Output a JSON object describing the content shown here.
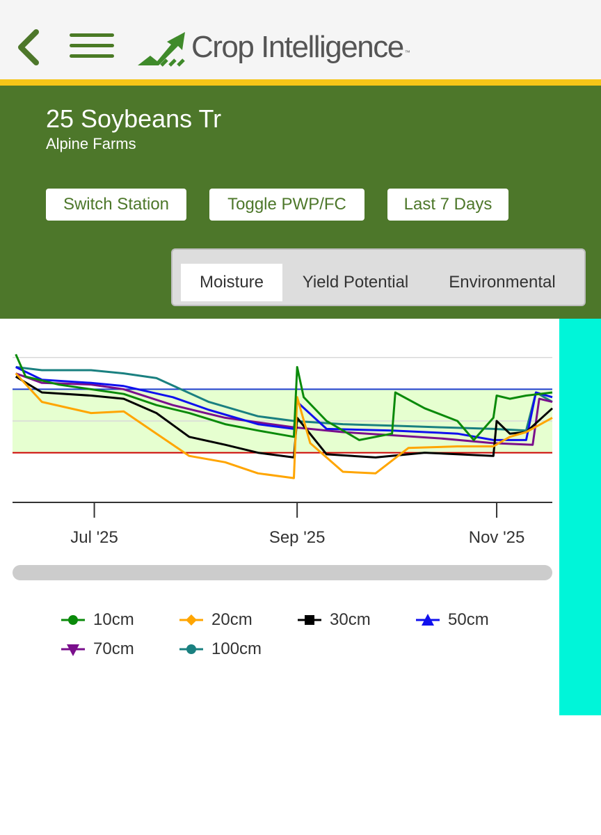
{
  "app": {
    "brand": "Crop Intelligence",
    "trademark": "™"
  },
  "header": {
    "title": "25 Soybeans Tr",
    "subtitle": "Alpine Farms",
    "buttons": [
      "Switch Station",
      "Toggle PWP/FC",
      "Last 7 Days"
    ],
    "tabs": [
      {
        "label": "Moisture",
        "active": true
      },
      {
        "label": "Yield Potential",
        "active": false
      },
      {
        "label": "Environmental",
        "active": false
      }
    ]
  },
  "icons": {
    "back": "chevron-left-icon",
    "menu": "hamburger-menu-icon",
    "logo": "rising-arrow-logo-icon"
  },
  "colors": {
    "brand_green": "#4d772a",
    "accent_yellow": "#f5c518",
    "sidebar_cyan": "#00f5d9",
    "field_capacity": "#1f3fcf",
    "wilting_point": "#cc0000",
    "optimal_band": "#e6ffd0"
  },
  "chart_data": {
    "type": "line",
    "x_tick_labels": [
      "Jul '25",
      "Sep '25",
      "Nov '25"
    ],
    "x_ticks": [
      "2025-07-01",
      "2025-09-01",
      "2025-11-01"
    ],
    "x_range": [
      "2025-06-06",
      "2025-11-18"
    ],
    "y_range": [
      0,
      100
    ],
    "grid": true,
    "legend_position": "bottom",
    "reference_lines": {
      "field_capacity": 70,
      "wilting_point": 30
    },
    "series": [
      {
        "name": "10cm",
        "color": "#0a8a0a",
        "marker": "circle",
        "points": [
          [
            "2025-06-07",
            92
          ],
          [
            "2025-06-10",
            78
          ],
          [
            "2025-06-20",
            73
          ],
          [
            "2025-06-30",
            70
          ],
          [
            "2025-07-10",
            67
          ],
          [
            "2025-07-20",
            60
          ],
          [
            "2025-07-30",
            55
          ],
          [
            "2025-08-10",
            48
          ],
          [
            "2025-08-20",
            44
          ],
          [
            "2025-08-31",
            40
          ],
          [
            "2025-09-01",
            84
          ],
          [
            "2025-09-03",
            65
          ],
          [
            "2025-09-10",
            50
          ],
          [
            "2025-09-20",
            38
          ],
          [
            "2025-09-30",
            42
          ],
          [
            "2025-10-01",
            68
          ],
          [
            "2025-10-10",
            58
          ],
          [
            "2025-10-20",
            50
          ],
          [
            "2025-10-25",
            38
          ],
          [
            "2025-10-31",
            52
          ],
          [
            "2025-11-01",
            66
          ],
          [
            "2025-11-05",
            64
          ],
          [
            "2025-11-10",
            66
          ],
          [
            "2025-11-18",
            68
          ]
        ]
      },
      {
        "name": "20cm",
        "color": "#ffa500",
        "marker": "diamond",
        "points": [
          [
            "2025-06-07",
            80
          ],
          [
            "2025-06-15",
            62
          ],
          [
            "2025-06-30",
            55
          ],
          [
            "2025-07-10",
            56
          ],
          [
            "2025-07-20",
            42
          ],
          [
            "2025-07-30",
            28
          ],
          [
            "2025-08-10",
            24
          ],
          [
            "2025-08-20",
            17
          ],
          [
            "2025-08-31",
            14
          ],
          [
            "2025-09-01",
            65
          ],
          [
            "2025-09-05",
            36
          ],
          [
            "2025-09-15",
            18
          ],
          [
            "2025-09-25",
            17
          ],
          [
            "2025-10-05",
            33
          ],
          [
            "2025-10-20",
            34
          ],
          [
            "2025-10-31",
            34
          ],
          [
            "2025-11-05",
            40
          ],
          [
            "2025-11-10",
            43
          ],
          [
            "2025-11-18",
            52
          ]
        ]
      },
      {
        "name": "30cm",
        "color": "#000000",
        "marker": "square",
        "points": [
          [
            "2025-06-07",
            78
          ],
          [
            "2025-06-15",
            68
          ],
          [
            "2025-06-30",
            66
          ],
          [
            "2025-07-10",
            64
          ],
          [
            "2025-07-20",
            55
          ],
          [
            "2025-07-30",
            40
          ],
          [
            "2025-08-10",
            35
          ],
          [
            "2025-08-20",
            30
          ],
          [
            "2025-08-31",
            27
          ],
          [
            "2025-09-01",
            52
          ],
          [
            "2025-09-10",
            29
          ],
          [
            "2025-09-25",
            27
          ],
          [
            "2025-10-10",
            30
          ],
          [
            "2025-10-31",
            28
          ],
          [
            "2025-11-01",
            50
          ],
          [
            "2025-11-05",
            42
          ],
          [
            "2025-11-10",
            43
          ],
          [
            "2025-11-18",
            58
          ]
        ]
      },
      {
        "name": "50cm",
        "color": "#1010ee",
        "marker": "triangle-up",
        "points": [
          [
            "2025-06-07",
            84
          ],
          [
            "2025-06-15",
            76
          ],
          [
            "2025-06-30",
            74
          ],
          [
            "2025-07-10",
            72
          ],
          [
            "2025-07-25",
            65
          ],
          [
            "2025-08-05",
            57
          ],
          [
            "2025-08-20",
            48
          ],
          [
            "2025-08-31",
            45
          ],
          [
            "2025-09-01",
            62
          ],
          [
            "2025-09-10",
            45
          ],
          [
            "2025-09-30",
            44
          ],
          [
            "2025-10-20",
            42
          ],
          [
            "2025-10-31",
            38
          ],
          [
            "2025-11-10",
            38
          ],
          [
            "2025-11-13",
            68
          ],
          [
            "2025-11-18",
            65
          ]
        ]
      },
      {
        "name": "70cm",
        "color": "#7a0f8c",
        "marker": "triangle-down",
        "points": [
          [
            "2025-06-07",
            80
          ],
          [
            "2025-06-15",
            74
          ],
          [
            "2025-06-30",
            73
          ],
          [
            "2025-07-10",
            70
          ],
          [
            "2025-07-25",
            60
          ],
          [
            "2025-08-10",
            52
          ],
          [
            "2025-08-31",
            46
          ],
          [
            "2025-09-15",
            43
          ],
          [
            "2025-09-30",
            41
          ],
          [
            "2025-10-15",
            39
          ],
          [
            "2025-10-31",
            36
          ],
          [
            "2025-11-12",
            35
          ],
          [
            "2025-11-14",
            64
          ],
          [
            "2025-11-18",
            62
          ]
        ]
      },
      {
        "name": "100cm",
        "color": "#1a8080",
        "marker": "circle",
        "points": [
          [
            "2025-06-07",
            84
          ],
          [
            "2025-06-15",
            82
          ],
          [
            "2025-06-30",
            82
          ],
          [
            "2025-07-10",
            80
          ],
          [
            "2025-07-20",
            77
          ],
          [
            "2025-08-05",
            62
          ],
          [
            "2025-08-20",
            53
          ],
          [
            "2025-08-31",
            50
          ],
          [
            "2025-09-15",
            48
          ],
          [
            "2025-09-30",
            47
          ],
          [
            "2025-10-15",
            46
          ],
          [
            "2025-10-31",
            45
          ],
          [
            "2025-11-10",
            44
          ],
          [
            "2025-11-13",
            68
          ],
          [
            "2025-11-18",
            62
          ]
        ]
      }
    ]
  }
}
